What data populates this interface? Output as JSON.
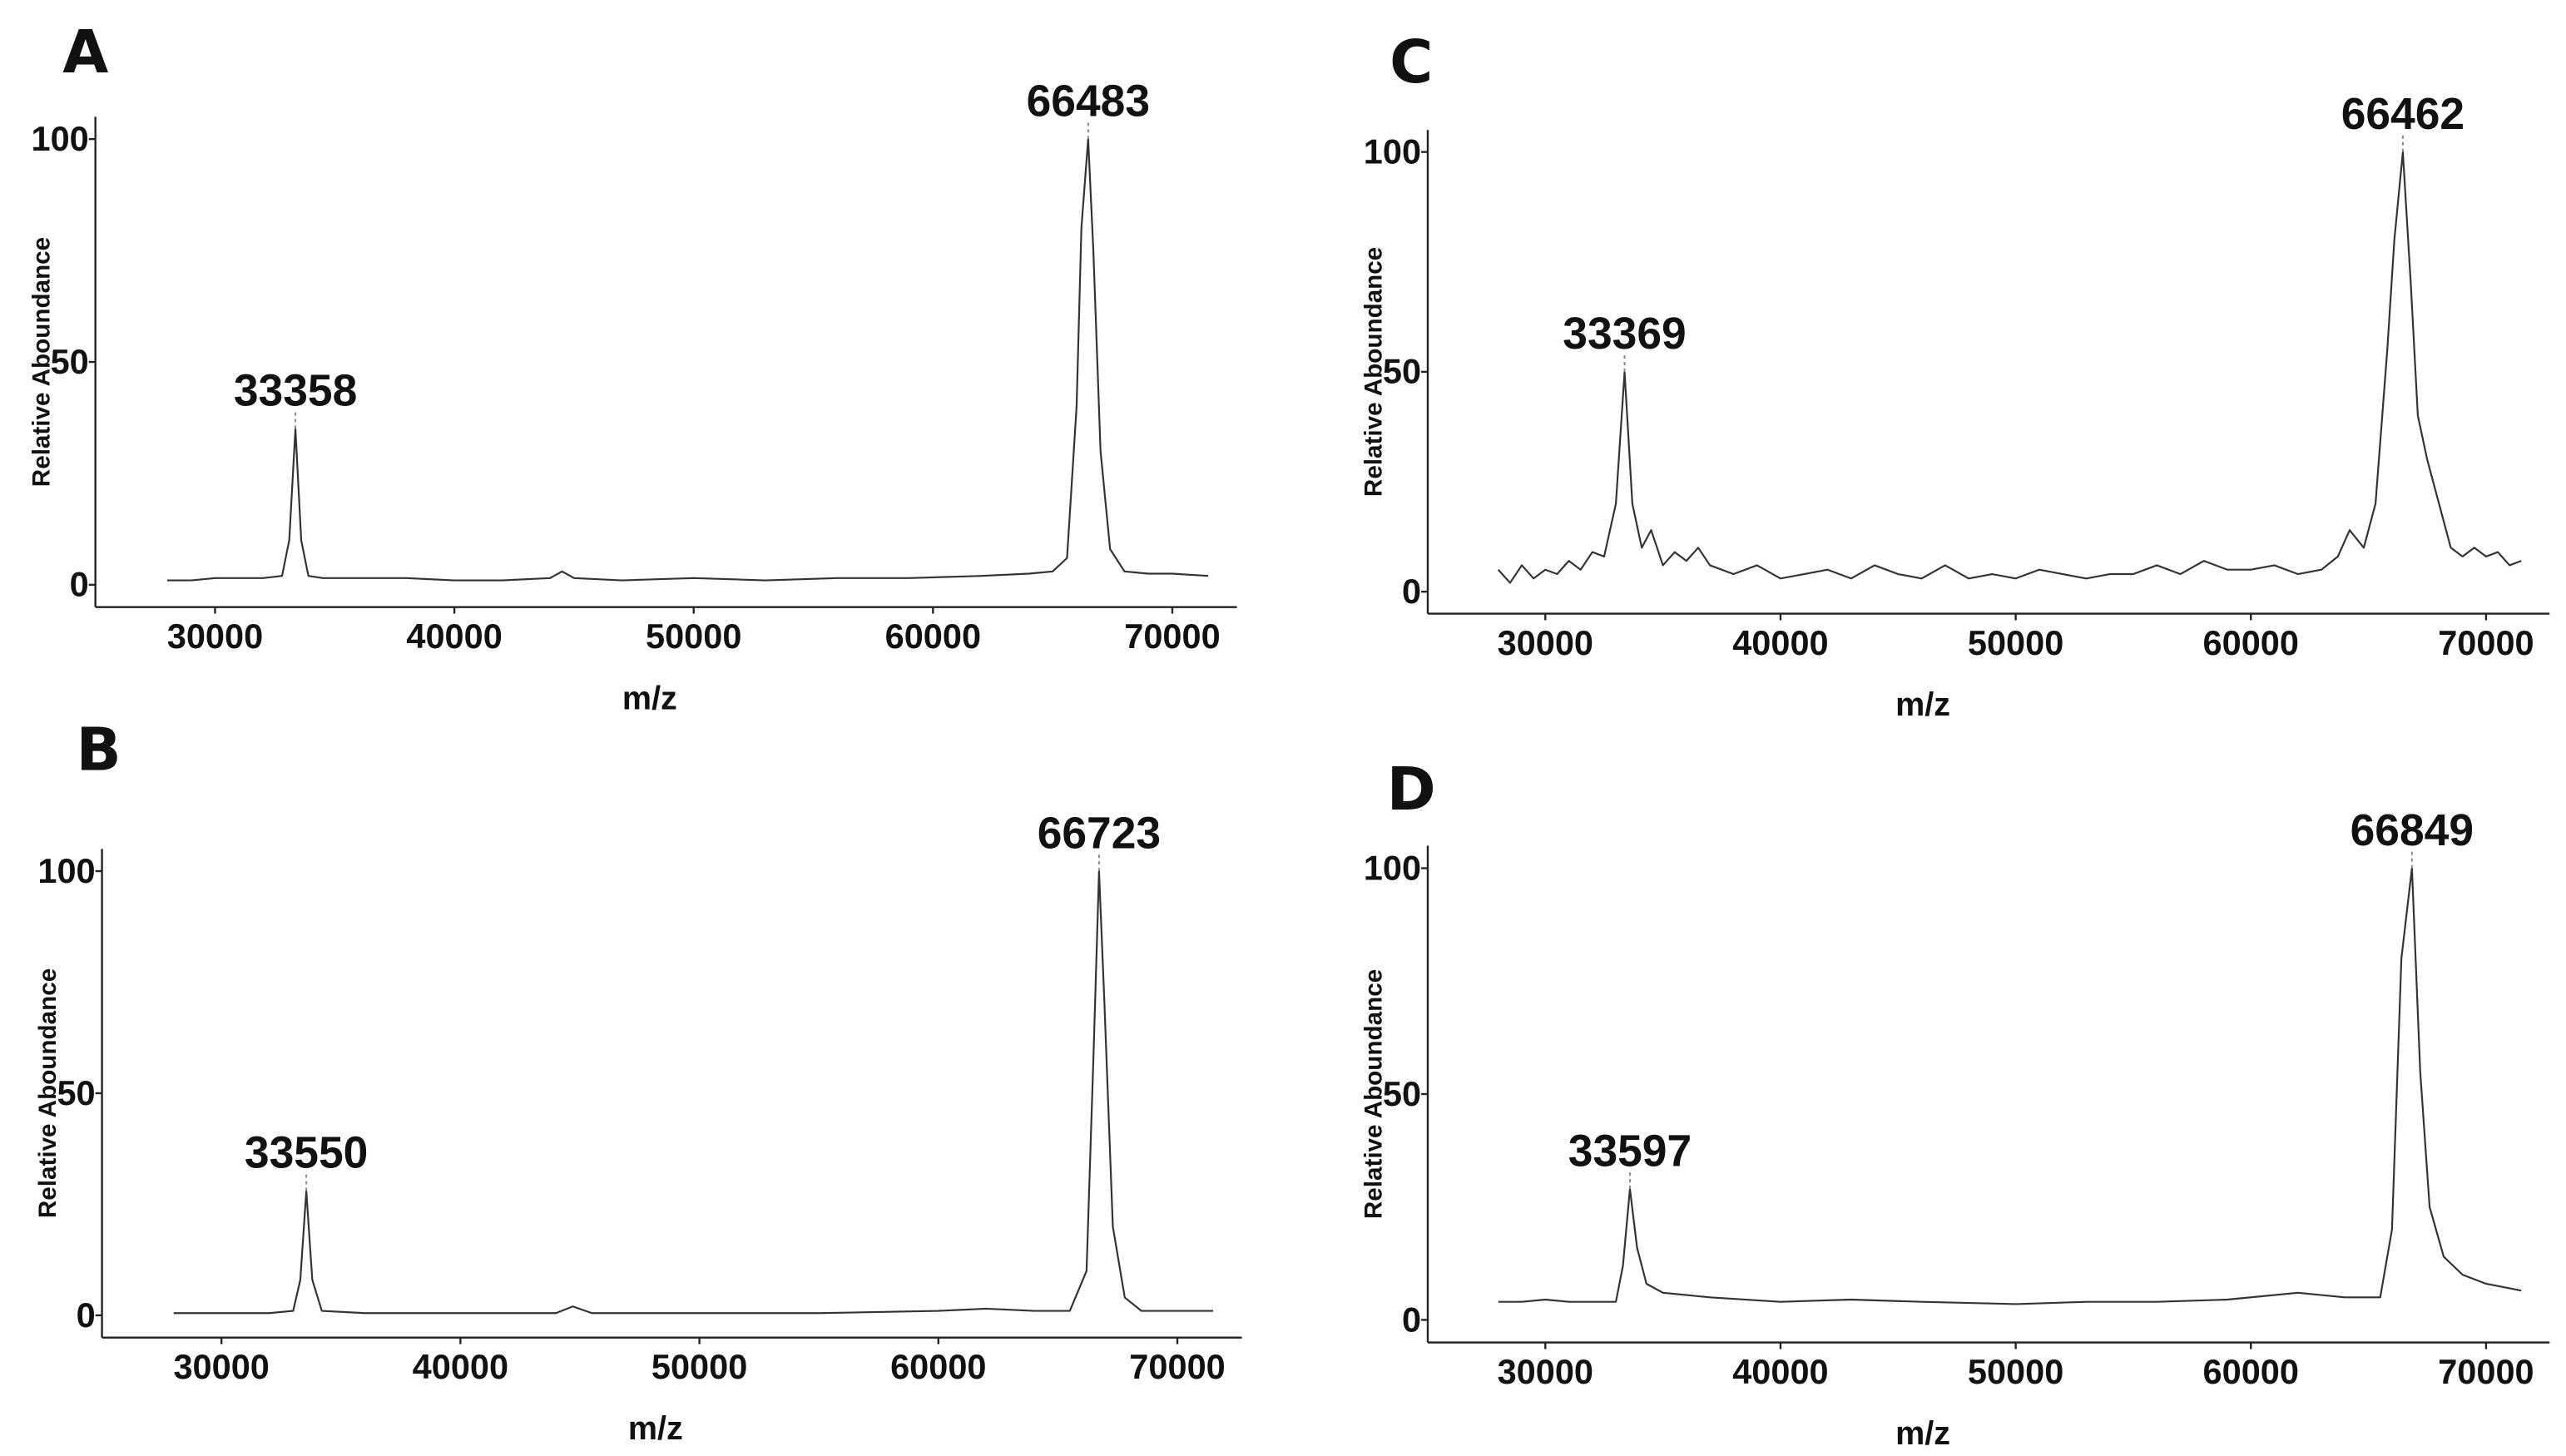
{
  "chart_data": [
    {
      "type": "line",
      "panel": "A",
      "x_label": "m/z",
      "y_label": "Relative Aboundance",
      "x": [
        28000,
        29000,
        30000,
        31000,
        32000,
        32800,
        33100,
        33358,
        33600,
        33900,
        34500,
        36000,
        38000,
        40000,
        42000,
        44000,
        44500,
        45000,
        47000,
        50000,
        53000,
        56000,
        59000,
        62000,
        64000,
        65000,
        65600,
        66000,
        66200,
        66483,
        66700,
        67000,
        67400,
        68000,
        69000,
        70000,
        71500
      ],
      "series": [
        {
          "color": "#333333",
          "values": [
            1,
            1,
            1.5,
            1.5,
            1.5,
            2,
            10,
            35,
            10,
            2,
            1.5,
            1.5,
            1.5,
            1,
            1,
            1.5,
            3,
            1.5,
            1,
            1.5,
            1,
            1.5,
            1.5,
            2,
            2.5,
            3,
            6,
            40,
            80,
            100,
            75,
            30,
            8,
            3,
            2.5,
            2.5,
            2
          ]
        }
      ],
      "xlim": [
        25000,
        72700
      ],
      "ylim": [
        -5,
        105
      ],
      "xticks": [
        30000,
        40000,
        50000,
        60000,
        70000
      ],
      "yticks": [
        0,
        50,
        100
      ],
      "annotations": [
        {
          "x": 33358,
          "y": 35
        },
        {
          "x": 66483,
          "y": 100
        }
      ]
    },
    {
      "type": "line",
      "panel": "B",
      "x_label": "m/z",
      "y_label": "Relative Aboundance",
      "x": [
        28000,
        30000,
        32000,
        33000,
        33300,
        33550,
        33800,
        34200,
        36000,
        40000,
        44000,
        44700,
        45500,
        50000,
        55000,
        60000,
        62000,
        64000,
        65500,
        66200,
        66500,
        66723,
        66950,
        67300,
        67800,
        68500,
        70000,
        71500
      ],
      "series": [
        {
          "color": "#333333",
          "values": [
            0.5,
            0.5,
            0.5,
            1,
            8,
            28,
            8,
            1,
            0.5,
            0.5,
            0.5,
            2,
            0.5,
            0.5,
            0.5,
            1,
            1.5,
            1,
            1,
            10,
            60,
            100,
            70,
            20,
            4,
            1,
            1,
            1
          ]
        }
      ],
      "xlim": [
        25000,
        72700
      ],
      "ylim": [
        -5,
        105
      ],
      "xticks": [
        30000,
        40000,
        50000,
        60000,
        70000
      ],
      "yticks": [
        0,
        50,
        100
      ],
      "annotations": [
        {
          "x": 33550,
          "y": 28
        },
        {
          "x": 66723,
          "y": 100
        }
      ]
    },
    {
      "type": "line",
      "panel": "C",
      "x_label": "m/z",
      "y_label": "Relative Aboundance",
      "x": [
        28000,
        28500,
        29000,
        29500,
        30000,
        30500,
        31000,
        31500,
        32000,
        32500,
        33000,
        33369,
        33700,
        34100,
        34500,
        35000,
        35500,
        36000,
        36500,
        37000,
        38000,
        39000,
        40000,
        41000,
        42000,
        43000,
        44000,
        45000,
        46000,
        47000,
        48000,
        49000,
        50000,
        51000,
        52000,
        53000,
        54000,
        55000,
        56000,
        57000,
        58000,
        59000,
        60000,
        61000,
        62000,
        63000,
        63700,
        64200,
        64800,
        65300,
        65800,
        66100,
        66462,
        66800,
        67100,
        67500,
        68000,
        68500,
        69000,
        69500,
        70000,
        70500,
        71000,
        71500
      ],
      "series": [
        {
          "color": "#333333",
          "values": [
            5,
            2,
            6,
            3,
            5,
            4,
            7,
            5,
            9,
            8,
            20,
            50,
            20,
            10,
            14,
            6,
            9,
            7,
            10,
            6,
            4,
            6,
            3,
            4,
            5,
            3,
            6,
            4,
            3,
            6,
            3,
            4,
            3,
            5,
            4,
            3,
            4,
            4,
            6,
            4,
            7,
            5,
            5,
            6,
            4,
            5,
            8,
            14,
            10,
            20,
            55,
            80,
            100,
            70,
            40,
            30,
            20,
            10,
            8,
            10,
            8,
            9,
            6,
            7
          ]
        }
      ],
      "xlim": [
        25000,
        72700
      ],
      "ylim": [
        -5,
        105
      ],
      "xticks": [
        30000,
        40000,
        50000,
        60000,
        70000
      ],
      "yticks": [
        0,
        50,
        100
      ],
      "annotations": [
        {
          "x": 33369,
          "y": 50
        },
        {
          "x": 66462,
          "y": 100
        }
      ]
    },
    {
      "type": "line",
      "panel": "D",
      "x_label": "m/z",
      "y_label": "Relative Aboundance",
      "x": [
        28000,
        29000,
        30000,
        31000,
        32000,
        33000,
        33300,
        33597,
        33900,
        34300,
        35000,
        37000,
        40000,
        43000,
        46000,
        50000,
        53000,
        56000,
        59000,
        62000,
        64000,
        65500,
        66000,
        66400,
        66849,
        67200,
        67600,
        68200,
        69000,
        70000,
        71500
      ],
      "series": [
        {
          "color": "#333333",
          "values": [
            4,
            4,
            4.5,
            4,
            4,
            4,
            12,
            29,
            16,
            8,
            6,
            5,
            4,
            4.5,
            4,
            3.5,
            4,
            4,
            4.5,
            6,
            5,
            5,
            20,
            80,
            100,
            55,
            25,
            14,
            10,
            8,
            6.5
          ]
        }
      ],
      "xlim": [
        25000,
        72700
      ],
      "ylim": [
        -5,
        105
      ],
      "xticks": [
        30000,
        40000,
        50000,
        60000,
        70000
      ],
      "yticks": [
        0,
        50,
        100
      ],
      "annotations": [
        {
          "x": 33597,
          "y": 29
        },
        {
          "x": 66849,
          "y": 100
        }
      ]
    }
  ]
}
